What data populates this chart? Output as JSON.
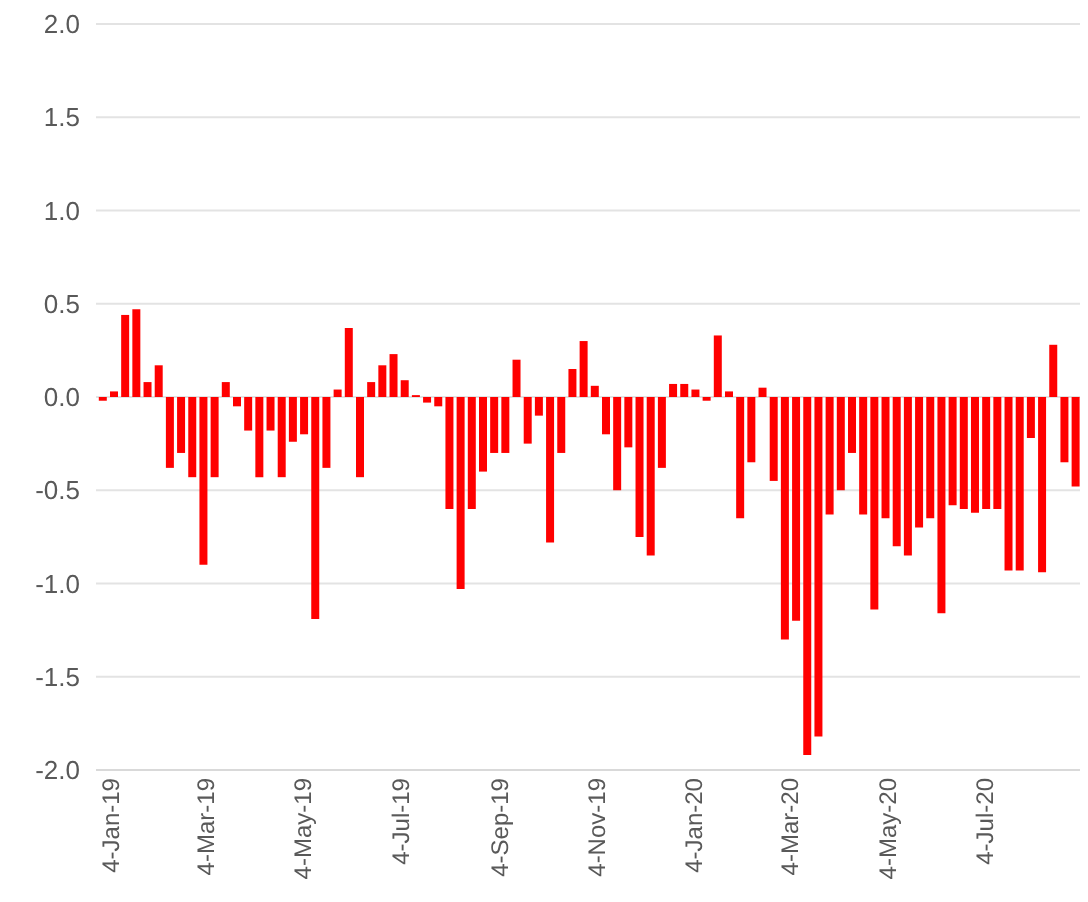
{
  "chart_data": {
    "type": "bar",
    "x": [
      "2019-01-04",
      "2019-01-11",
      "2019-01-18",
      "2019-01-25",
      "2019-02-01",
      "2019-02-08",
      "2019-02-15",
      "2019-02-22",
      "2019-03-01",
      "2019-03-08",
      "2019-03-15",
      "2019-03-22",
      "2019-03-29",
      "2019-04-05",
      "2019-04-12",
      "2019-04-19",
      "2019-04-26",
      "2019-05-03",
      "2019-05-10",
      "2019-05-17",
      "2019-05-24",
      "2019-05-31",
      "2019-06-07",
      "2019-06-14",
      "2019-06-21",
      "2019-06-28",
      "2019-07-05",
      "2019-07-12",
      "2019-07-19",
      "2019-07-26",
      "2019-08-02",
      "2019-08-09",
      "2019-08-16",
      "2019-08-23",
      "2019-08-30",
      "2019-09-06",
      "2019-09-13",
      "2019-09-20",
      "2019-09-27",
      "2019-10-04",
      "2019-10-11",
      "2019-10-18",
      "2019-10-25",
      "2019-11-01",
      "2019-11-08",
      "2019-11-15",
      "2019-11-22",
      "2019-11-29",
      "2019-12-06",
      "2019-12-13",
      "2019-12-20",
      "2019-12-27",
      "2020-01-03",
      "2020-01-10",
      "2020-01-17",
      "2020-01-24",
      "2020-01-31",
      "2020-02-07",
      "2020-02-14",
      "2020-02-21",
      "2020-02-28",
      "2020-03-06",
      "2020-03-13",
      "2020-03-20",
      "2020-03-27",
      "2020-04-03",
      "2020-04-10",
      "2020-04-17",
      "2020-04-24",
      "2020-05-01",
      "2020-05-08",
      "2020-05-15",
      "2020-05-22",
      "2020-05-29",
      "2020-06-05",
      "2020-06-12",
      "2020-06-19",
      "2020-06-26",
      "2020-07-03",
      "2020-07-10",
      "2020-07-17",
      "2020-07-24",
      "2020-07-31",
      "2020-08-07",
      "2020-08-14",
      "2020-08-21",
      "2020-08-28",
      "2020-09-04"
    ],
    "values": [
      -0.02,
      0.03,
      0.44,
      0.47,
      0.08,
      0.17,
      -0.38,
      -0.3,
      -0.43,
      -0.9,
      -0.43,
      0.08,
      -0.05,
      -0.18,
      -0.43,
      -0.18,
      -0.43,
      -0.24,
      -0.2,
      -1.19,
      -0.38,
      0.04,
      0.37,
      -0.43,
      0.08,
      0.17,
      0.23,
      0.09,
      0.01,
      -0.03,
      -0.05,
      -0.6,
      -1.03,
      -0.6,
      -0.4,
      -0.3,
      -0.3,
      0.2,
      -0.25,
      -0.1,
      -0.78,
      -0.3,
      0.15,
      0.3,
      0.06,
      -0.2,
      -0.5,
      -0.27,
      -0.75,
      -0.85,
      -0.38,
      0.07,
      0.07,
      0.04,
      -0.02,
      0.33,
      0.03,
      -0.65,
      -0.35,
      0.05,
      -0.45,
      -1.3,
      -1.2,
      -1.92,
      -1.82,
      -0.63,
      -0.5,
      -0.3,
      -0.63,
      -1.14,
      -0.65,
      -0.8,
      -0.85,
      -0.7,
      -0.65,
      -1.16,
      -0.58,
      -0.6,
      -0.62,
      -0.6,
      -0.6,
      -0.93,
      -0.93,
      -0.22,
      -0.94,
      0.28,
      -0.35,
      -0.48
    ],
    "color": "#ff0000",
    "xlim": [
      "2018-12-31",
      "2020-09-07"
    ],
    "xticks": [
      {
        "value": "2019-01-04",
        "label": "4-Jan-19"
      },
      {
        "value": "2019-03-04",
        "label": "4-Mar-19"
      },
      {
        "value": "2019-05-04",
        "label": "4-May-19"
      },
      {
        "value": "2019-07-04",
        "label": "4-Jul-19"
      },
      {
        "value": "2019-09-04",
        "label": "4-Sep-19"
      },
      {
        "value": "2019-11-04",
        "label": "4-Nov-19"
      },
      {
        "value": "2020-01-04",
        "label": "4-Jan-20"
      },
      {
        "value": "2020-03-04",
        "label": "4-Mar-20"
      },
      {
        "value": "2020-05-04",
        "label": "4-May-20"
      },
      {
        "value": "2020-07-04",
        "label": "4-Jul-20"
      }
    ],
    "ylim": [
      -2,
      2
    ],
    "yticks": [
      {
        "value": -2,
        "label": "-2.0"
      },
      {
        "value": -1.5,
        "label": "-1.5"
      },
      {
        "value": -1,
        "label": "-1.0"
      },
      {
        "value": -0.5,
        "label": "-0.5"
      },
      {
        "value": 0,
        "label": "0.0"
      },
      {
        "value": 0.5,
        "label": "0.5"
      },
      {
        "value": 1,
        "label": "1.0"
      },
      {
        "value": 1.5,
        "label": "1.5"
      },
      {
        "value": 2,
        "label": "2.0"
      }
    ],
    "grid": "y"
  }
}
